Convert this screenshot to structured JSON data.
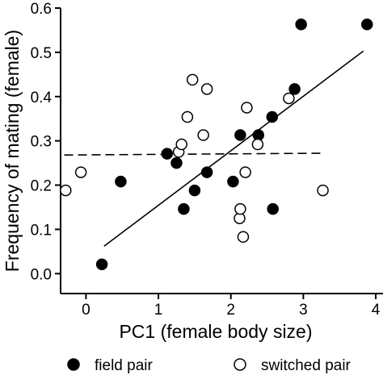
{
  "chart_data": {
    "type": "scatter",
    "xlabel": "PC1 (female body size)",
    "ylabel": "Frequency of mating (female)",
    "xlim": [
      -0.35,
      4.1
    ],
    "ylim": [
      -0.045,
      0.6
    ],
    "xticks": [
      "0",
      "1",
      "2",
      "3",
      "4"
    ],
    "yticks": [
      "0.0",
      "0.1",
      "0.2",
      "0.3",
      "0.4",
      "0.5",
      "0.6"
    ],
    "grid": false,
    "legend_position": "bottom",
    "series": [
      {
        "name": "field pair",
        "marker": "filled-circle",
        "color": "#000000",
        "points": [
          [
            0.22,
            0.021
          ],
          [
            0.48,
            0.208
          ],
          [
            1.12,
            0.271
          ],
          [
            1.25,
            0.25
          ],
          [
            1.35,
            0.146
          ],
          [
            1.5,
            0.188
          ],
          [
            1.67,
            0.229
          ],
          [
            2.03,
            0.208
          ],
          [
            2.13,
            0.313
          ],
          [
            2.38,
            0.313
          ],
          [
            2.57,
            0.354
          ],
          [
            2.58,
            0.146
          ],
          [
            2.88,
            0.417
          ],
          [
            2.97,
            0.563
          ],
          [
            3.88,
            0.563
          ]
        ]
      },
      {
        "name": "switched pair",
        "marker": "open-circle",
        "color": "#000000",
        "points": [
          [
            -0.28,
            0.188
          ],
          [
            -0.07,
            0.229
          ],
          [
            1.28,
            0.275
          ],
          [
            1.32,
            0.292
          ],
          [
            1.4,
            0.354
          ],
          [
            1.47,
            0.438
          ],
          [
            1.62,
            0.313
          ],
          [
            1.67,
            0.417
          ],
          [
            2.12,
            0.125
          ],
          [
            2.13,
            0.146
          ],
          [
            2.17,
            0.083
          ],
          [
            2.2,
            0.229
          ],
          [
            2.22,
            0.375
          ],
          [
            2.37,
            0.292
          ],
          [
            2.8,
            0.396
          ],
          [
            3.27,
            0.188
          ]
        ]
      }
    ],
    "fits": [
      {
        "series": "field pair",
        "style": "solid",
        "x": [
          0.25,
          3.83
        ],
        "y": [
          0.062,
          0.503
        ]
      },
      {
        "series": "switched pair",
        "style": "dashed",
        "x": [
          -0.3,
          3.25
        ],
        "y": [
          0.268,
          0.272
        ]
      }
    ]
  }
}
